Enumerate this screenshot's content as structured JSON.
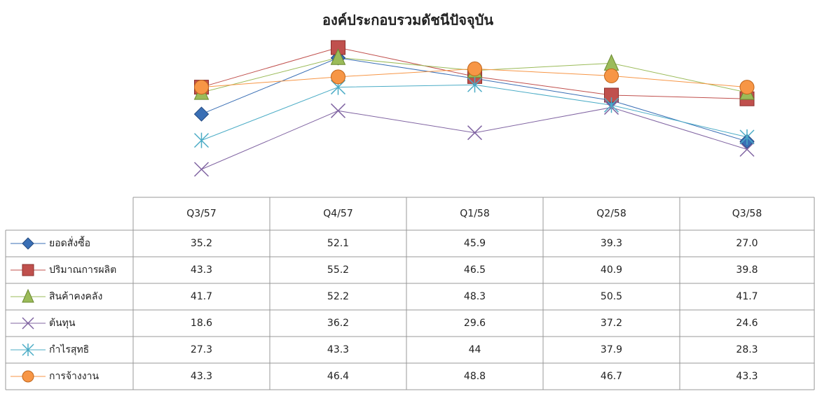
{
  "chart_data": {
    "type": "line",
    "title": "องค์ประกอบรวมดัชนีปัจจุบัน",
    "categories": [
      "Q3/57",
      "Q4/57",
      "Q1/58",
      "Q2/58",
      "Q3/58"
    ],
    "series": [
      {
        "name": "ยอดสั่งซื้อ",
        "color": "#3a6fb5",
        "marker": "diamond",
        "values": [
          35.2,
          52.1,
          45.9,
          39.3,
          27
        ],
        "value_labels": [
          "35.2",
          "52.1",
          "45.9",
          "39.3",
          "27.0"
        ]
      },
      {
        "name": "ปริมาณการผลิต",
        "color": "#c0504d",
        "marker": "square",
        "values": [
          43.3,
          55.2,
          46.5,
          40.9,
          39.8
        ]
      },
      {
        "name": "สินค้าคงคลัง",
        "color": "#9bbb59",
        "marker": "triangle",
        "values": [
          41.7,
          52.2,
          48.3,
          50.5,
          41.7
        ]
      },
      {
        "name": "ต้นทุน",
        "color": "#8064a2",
        "marker": "x",
        "values": [
          18.6,
          36.2,
          29.6,
          37.2,
          24.6
        ]
      },
      {
        "name": "กำไรสุทธิ",
        "color": "#4bacc6",
        "marker": "star",
        "values": [
          27.3,
          43.3,
          44,
          37.9,
          28.3
        ]
      },
      {
        "name": "การจ้างงาน",
        "color": "#f79646",
        "marker": "circle",
        "values": [
          43.3,
          46.4,
          48.8,
          46.7,
          43.3
        ]
      }
    ]
  }
}
